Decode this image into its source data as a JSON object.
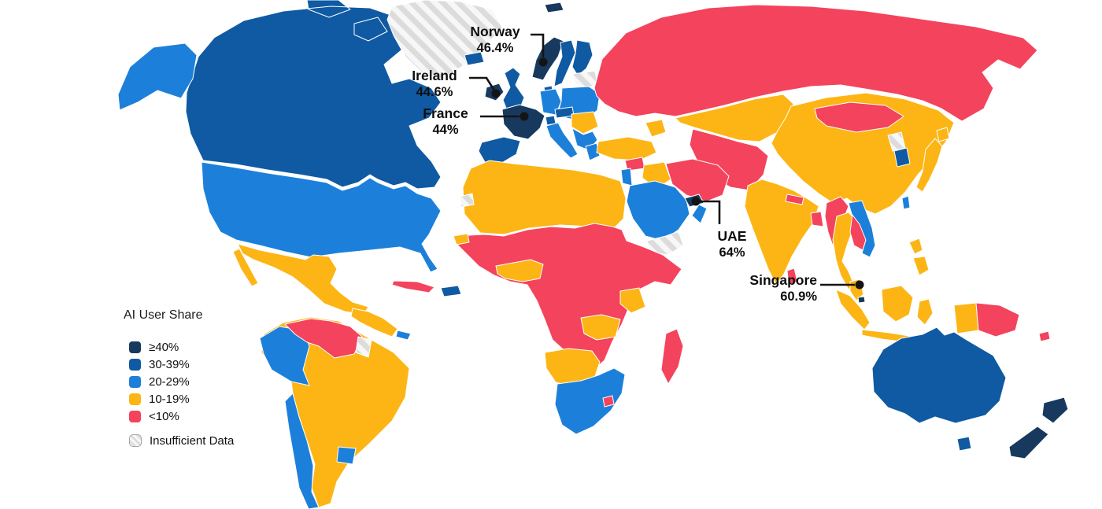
{
  "legend": {
    "title": "AI User Share",
    "items": [
      {
        "id": "ge40",
        "label": "≥40%",
        "color": "#17395e"
      },
      {
        "id": "b3039",
        "label": "30-39%",
        "color": "#0f5aa2"
      },
      {
        "id": "b2029",
        "label": "20-29%",
        "color": "#1c80da"
      },
      {
        "id": "b1019",
        "label": "10-19%",
        "color": "#fcb514"
      },
      {
        "id": "lt10",
        "label": "<10%",
        "color": "#f4435c"
      }
    ],
    "insufficient": {
      "id": "nodata",
      "label": "Insufficient Data",
      "swatch_border": "#a6a6a6",
      "stripe_color": "#dcdcdc",
      "stripe_bg": "#f7f7f7"
    }
  },
  "annotations": [
    {
      "id": "norway",
      "country": "Norway",
      "value": "46.4%"
    },
    {
      "id": "ireland",
      "country": "Ireland",
      "value": "44.6%"
    },
    {
      "id": "france",
      "country": "France",
      "value": "44%"
    },
    {
      "id": "uae",
      "country": "UAE",
      "value": "64%"
    },
    {
      "id": "singapore",
      "country": "Singapore",
      "value": "60.9%"
    }
  ],
  "chart_data": {
    "type": "choropleth",
    "title": "AI User Share",
    "unit": "percent",
    "legend_buckets": [
      "≥40%",
      "30-39%",
      "20-29%",
      "10-19%",
      "<10%",
      "Insufficient Data"
    ],
    "labeled_values": [
      {
        "country": "UAE",
        "ai_user_share_pct": 64
      },
      {
        "country": "Singapore",
        "ai_user_share_pct": 60.9
      },
      {
        "country": "Norway",
        "ai_user_share_pct": 46.4
      },
      {
        "country": "Ireland",
        "ai_user_share_pct": 44.6
      },
      {
        "country": "France",
        "ai_user_share_pct": 44
      }
    ],
    "regions": [
      {
        "id": "canada",
        "bucket": "30-39%"
      },
      {
        "id": "greenland",
        "bucket": "Insufficient Data"
      },
      {
        "id": "alaska",
        "bucket": "20-29%"
      },
      {
        "id": "usa",
        "bucket": "20-29%"
      },
      {
        "id": "hawaii",
        "bucket": "20-29%"
      },
      {
        "id": "mexico",
        "bucket": "10-19%"
      },
      {
        "id": "central_america",
        "bucket": "10-19%"
      },
      {
        "id": "cuba",
        "bucket": "<10%"
      },
      {
        "id": "dominican_republic",
        "bucket": "30-39%"
      },
      {
        "id": "panama",
        "bucket": "20-29%"
      },
      {
        "id": "south_america_core",
        "bucket": "10-19%"
      },
      {
        "id": "colombia",
        "bucket": "20-29%"
      },
      {
        "id": "venezuela",
        "bucket": "<10%"
      },
      {
        "id": "guyanas",
        "bucket": "Insufficient Data"
      },
      {
        "id": "chile",
        "bucket": "20-29%"
      },
      {
        "id": "uruguay",
        "bucket": "20-29%"
      },
      {
        "id": "iceland",
        "bucket": "30-39%"
      },
      {
        "id": "norway",
        "bucket": "≥40%"
      },
      {
        "id": "sweden",
        "bucket": "30-39%"
      },
      {
        "id": "finland",
        "bucket": "30-39%"
      },
      {
        "id": "denmark",
        "bucket": "30-39%"
      },
      {
        "id": "uk",
        "bucket": "30-39%"
      },
      {
        "id": "ireland",
        "bucket": "≥40%"
      },
      {
        "id": "baltics",
        "bucket": "Insufficient Data"
      },
      {
        "id": "central_europe",
        "bucket": "20-29%"
      },
      {
        "id": "germany",
        "bucket": "20-29%"
      },
      {
        "id": "italy",
        "bucket": "20-29%"
      },
      {
        "id": "france",
        "bucket": "≥40%"
      },
      {
        "id": "austria",
        "bucket": "30-39%"
      },
      {
        "id": "switzerland",
        "bucket": "30-39%"
      },
      {
        "id": "romania_hungary",
        "bucket": "10-19%"
      },
      {
        "id": "balkans",
        "bucket": "20-29%"
      },
      {
        "id": "greece",
        "bucket": "20-29%"
      },
      {
        "id": "iberia",
        "bucket": "30-39%"
      },
      {
        "id": "russia",
        "bucket": "<10%"
      },
      {
        "id": "kazakhstan",
        "bucket": "10-19%"
      },
      {
        "id": "central_asia",
        "bucket": "<10%"
      },
      {
        "id": "caucasus",
        "bucket": "10-19%"
      },
      {
        "id": "turkey",
        "bucket": "10-19%"
      },
      {
        "id": "syria",
        "bucket": "<10%"
      },
      {
        "id": "levant",
        "bucket": "20-29%"
      },
      {
        "id": "iraq",
        "bucket": "10-19%"
      },
      {
        "id": "iran",
        "bucket": "<10%"
      },
      {
        "id": "saudi_arabia",
        "bucket": "20-29%"
      },
      {
        "id": "uae",
        "bucket": "≥40%"
      },
      {
        "id": "oman",
        "bucket": "20-29%"
      },
      {
        "id": "yemen",
        "bucket": "Insufficient Data"
      },
      {
        "id": "north_africa",
        "bucket": "10-19%"
      },
      {
        "id": "africa_central",
        "bucket": "<10%"
      },
      {
        "id": "senegal",
        "bucket": "10-19%"
      },
      {
        "id": "nigeria_ghana",
        "bucket": "10-19%"
      },
      {
        "id": "kenya",
        "bucket": "10-19%"
      },
      {
        "id": "zambia",
        "bucket": "10-19%"
      },
      {
        "id": "namibia_botswana",
        "bucket": "10-19%"
      },
      {
        "id": "south_africa",
        "bucket": "20-29%"
      },
      {
        "id": "lesotho",
        "bucket": "<10%"
      },
      {
        "id": "madagascar",
        "bucket": "<10%"
      },
      {
        "id": "western_sahara",
        "bucket": "Insufficient Data"
      },
      {
        "id": "china",
        "bucket": "10-19%"
      },
      {
        "id": "mongolia",
        "bucket": "<10%"
      },
      {
        "id": "india",
        "bucket": "10-19%"
      },
      {
        "id": "nepal",
        "bucket": "<10%"
      },
      {
        "id": "bangladesh",
        "bucket": "<10%"
      },
      {
        "id": "sri_lanka",
        "bucket": "<10%"
      },
      {
        "id": "myanmar",
        "bucket": "<10%"
      },
      {
        "id": "thailand",
        "bucket": "10-19%"
      },
      {
        "id": "laos_cambodia",
        "bucket": "<10%"
      },
      {
        "id": "vietnam",
        "bucket": "20-29%"
      },
      {
        "id": "malaysia",
        "bucket": "10-19%"
      },
      {
        "id": "singapore",
        "bucket": "≥40%"
      },
      {
        "id": "sumatra",
        "bucket": "10-19%"
      },
      {
        "id": "java",
        "bucket": "10-19%"
      },
      {
        "id": "borneo",
        "bucket": "10-19%"
      },
      {
        "id": "sulawesi",
        "bucket": "10-19%"
      },
      {
        "id": "philippines",
        "bucket": "10-19%"
      },
      {
        "id": "taiwan",
        "bucket": "20-29%"
      },
      {
        "id": "japan",
        "bucket": "10-19%"
      },
      {
        "id": "south_korea",
        "bucket": "30-39%"
      },
      {
        "id": "north_korea",
        "bucket": "Insufficient Data"
      },
      {
        "id": "png_west",
        "bucket": "10-19%"
      },
      {
        "id": "png_east",
        "bucket": "<10%"
      },
      {
        "id": "australia",
        "bucket": "30-39%"
      },
      {
        "id": "new_zealand",
        "bucket": "≥40%"
      },
      {
        "id": "fiji",
        "bucket": "<10%"
      },
      {
        "id": "svalbard",
        "bucket": "≥40%"
      }
    ]
  }
}
